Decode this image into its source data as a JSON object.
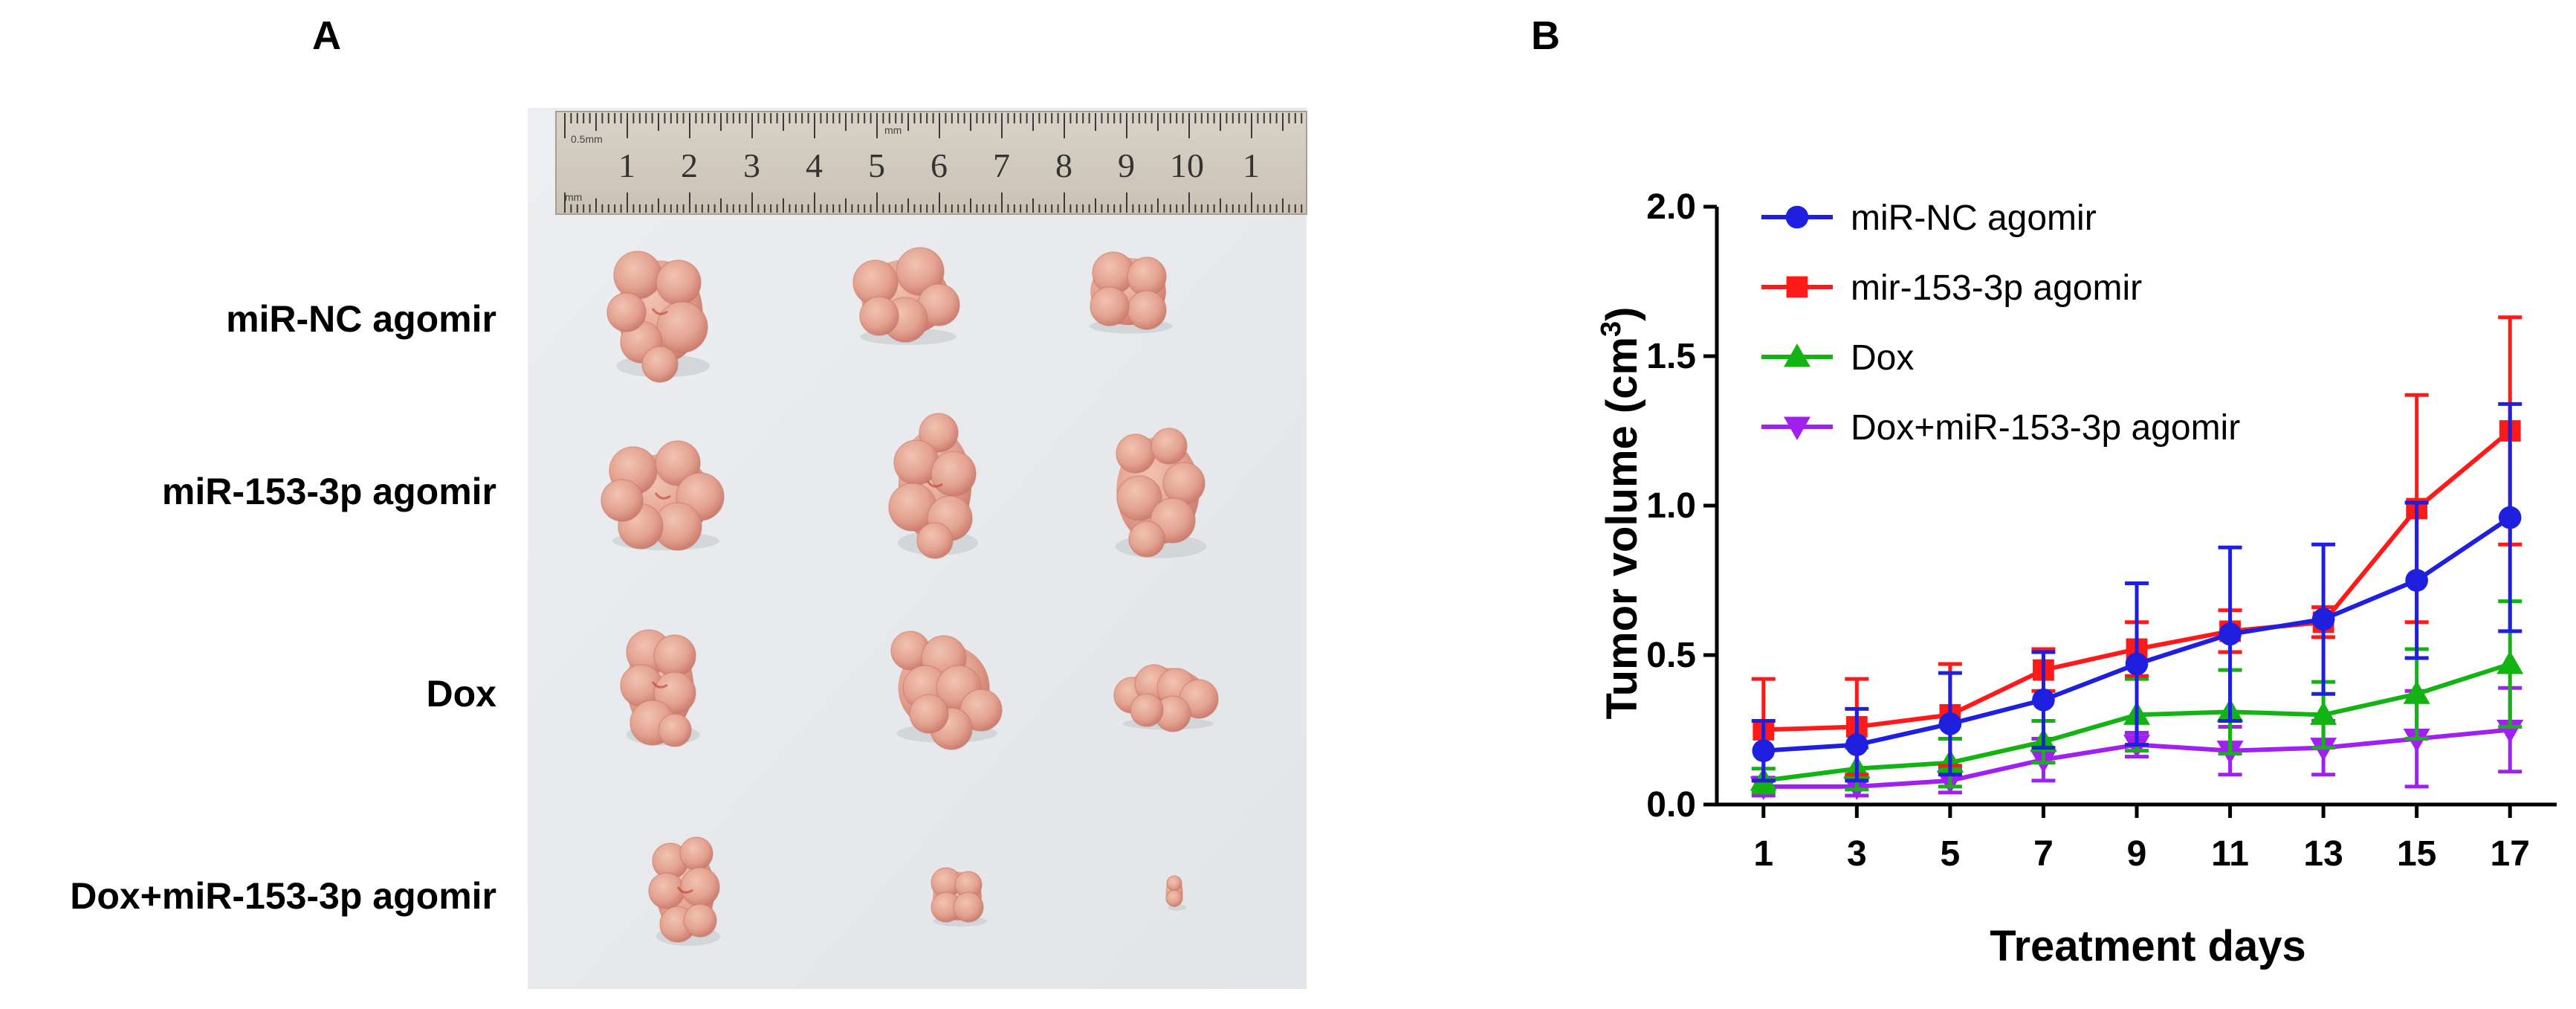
{
  "panels": {
    "a_letter": "A",
    "b_letter": "B"
  },
  "photo": {
    "ruler": {
      "numbers": [
        "1",
        "2",
        "3",
        "4",
        "5",
        "6",
        "7",
        "8",
        "9",
        "10",
        "1"
      ],
      "highlight_color": "#b03a2e",
      "small_label_left": "0.5mm",
      "small_label_mm": "mm",
      "small_label_bottom": "mm"
    },
    "rows": [
      {
        "label": "miR-NC agomir",
        "tumors": 3
      },
      {
        "label": "miR-153-3p agomir",
        "tumors": 3
      },
      {
        "label": "Dox",
        "tumors": 3
      },
      {
        "label": "Dox+miR-153-3p agomir",
        "tumors": 3
      }
    ],
    "colors": {
      "background": "#e9ebee",
      "tumor": "#e3a28f",
      "tumor_dark": "#c9776a"
    }
  },
  "chart_data": {
    "type": "line",
    "xlabel": "Treatment days",
    "ylabel_main": "Tumor volume (cm",
    "ylabel_sup": "3",
    "ylabel_close": ")",
    "x": [
      1,
      3,
      5,
      7,
      9,
      11,
      13,
      15,
      17
    ],
    "xlim": [
      0,
      18
    ],
    "ylim": [
      0,
      2.0
    ],
    "yticks": [
      "0.0",
      "0.5",
      "1.0",
      "1.5",
      "2.0"
    ],
    "xticks": [
      "1",
      "3",
      "5",
      "7",
      "9",
      "11",
      "13",
      "15",
      "17"
    ],
    "legend_position": "top-left",
    "grid": false,
    "series": [
      {
        "name": "miR-NC agomir",
        "color": "#1f1fe0",
        "marker": "circle",
        "values": [
          0.18,
          0.2,
          0.27,
          0.35,
          0.47,
          0.57,
          0.62,
          0.75,
          0.96
        ],
        "errors": [
          0.1,
          0.12,
          0.17,
          0.16,
          0.27,
          0.29,
          0.25,
          0.26,
          0.38
        ]
      },
      {
        "name": "mir-153-3p agomir",
        "color": "#ff1a1a",
        "marker": "square",
        "values": [
          0.25,
          0.26,
          0.3,
          0.45,
          0.52,
          0.58,
          0.61,
          0.99,
          1.25
        ],
        "errors": [
          0.17,
          0.16,
          0.17,
          0.07,
          0.09,
          0.07,
          0.05,
          0.38,
          0.38
        ]
      },
      {
        "name": "Dox",
        "color": "#12b312",
        "marker": "triangle-up",
        "values": [
          0.08,
          0.12,
          0.14,
          0.21,
          0.3,
          0.31,
          0.3,
          0.37,
          0.47
        ],
        "errors": [
          0.04,
          0.07,
          0.08,
          0.07,
          0.12,
          0.14,
          0.11,
          0.15,
          0.21
        ]
      },
      {
        "name": "Dox+miR-153-3p agomir",
        "color": "#a020f0",
        "marker": "triangle-down",
        "values": [
          0.06,
          0.06,
          0.08,
          0.15,
          0.2,
          0.18,
          0.19,
          0.22,
          0.25
        ],
        "errors": [
          0.03,
          0.03,
          0.04,
          0.07,
          0.04,
          0.08,
          0.09,
          0.16,
          0.14
        ]
      }
    ]
  }
}
